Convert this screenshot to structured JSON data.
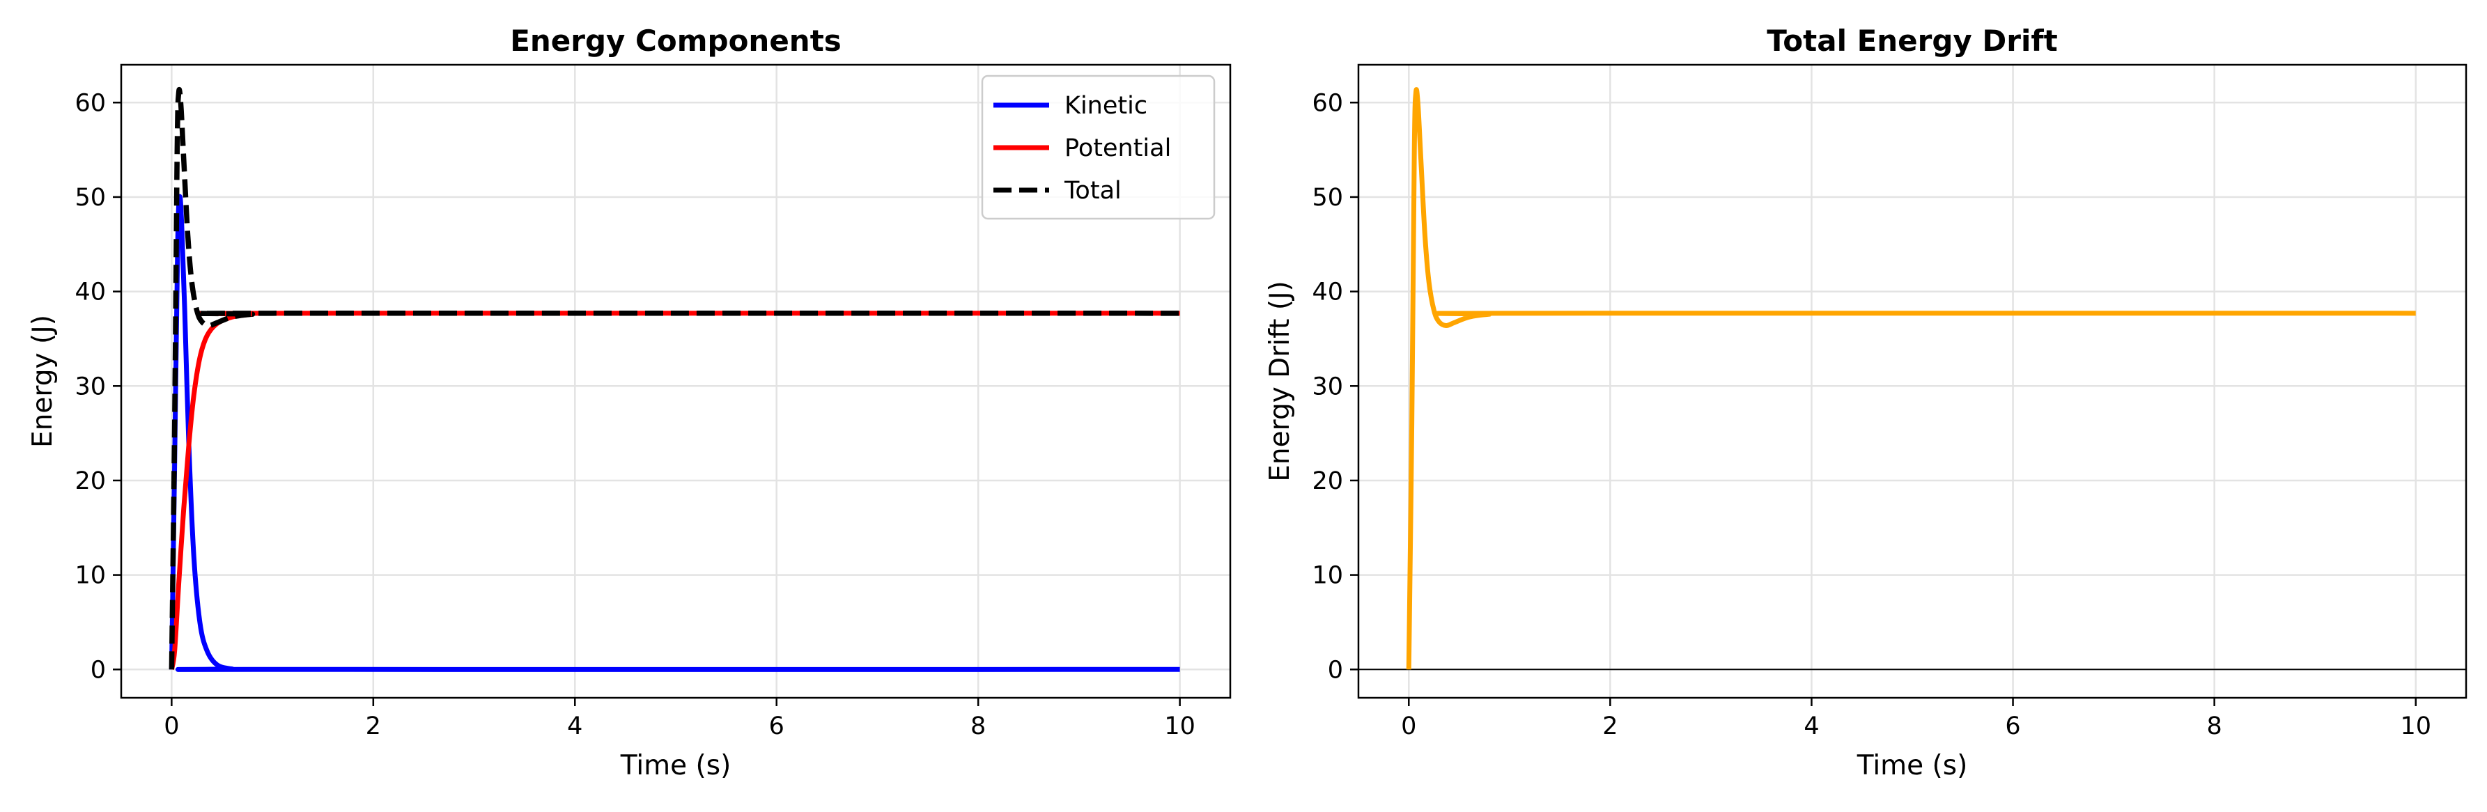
{
  "chart_data": [
    {
      "type": "line",
      "title": "Energy Components",
      "xlabel": "Time (s)",
      "ylabel": "Energy (J)",
      "xlim": [
        -0.5,
        10.5
      ],
      "ylim": [
        -3,
        64
      ],
      "xticks": [
        0,
        2,
        4,
        6,
        8,
        10
      ],
      "yticks": [
        0,
        10,
        20,
        30,
        40,
        50,
        60
      ],
      "grid": true,
      "legend_placement": "top-right",
      "series": [
        {
          "name": "Kinetic",
          "color": "#0000ff",
          "style": "solid",
          "x": [
            0,
            0.03,
            0.06,
            0.08,
            0.1,
            0.13,
            0.17,
            0.22,
            0.28,
            0.35,
            0.45,
            0.6,
            0.8,
            10
          ],
          "y": [
            0,
            22,
            45,
            50,
            47,
            38,
            24,
            12,
            5,
            2,
            0.5,
            0.05,
            0,
            0
          ]
        },
        {
          "name": "Potential",
          "color": "#ff0000",
          "style": "solid",
          "x": [
            0,
            0.03,
            0.07,
            0.12,
            0.17,
            0.22,
            0.28,
            0.35,
            0.45,
            0.6,
            0.8,
            1.0,
            10
          ],
          "y": [
            0,
            2,
            9,
            17,
            23.7,
            29,
            33,
            35.3,
            36.6,
            37.3,
            37.6,
            37.7,
            37.7
          ]
        },
        {
          "name": "Total",
          "color": "#000000",
          "style": "dashed",
          "x": [
            0,
            0.03,
            0.055,
            0.07,
            0.09,
            0.12,
            0.16,
            0.2,
            0.25,
            0.3,
            0.37,
            0.45,
            0.6,
            0.8,
            1.0,
            10
          ],
          "y": [
            0,
            26,
            55,
            61,
            60,
            54,
            46,
            41,
            38,
            36.8,
            36.4,
            36.7,
            37.3,
            37.6,
            37.7,
            37.7
          ]
        }
      ]
    },
    {
      "type": "line",
      "title": "Total Energy Drift",
      "xlabel": "Time (s)",
      "ylabel": "Energy Drift (J)",
      "xlim": [
        -0.5,
        10.5
      ],
      "ylim": [
        -3,
        64
      ],
      "xticks": [
        0,
        2,
        4,
        6,
        8,
        10
      ],
      "yticks": [
        0,
        10,
        20,
        30,
        40,
        50,
        60
      ],
      "grid": true,
      "reference_line_y": 0,
      "series": [
        {
          "color": "#ffa500",
          "style": "solid",
          "x": [
            0,
            0.03,
            0.055,
            0.07,
            0.09,
            0.12,
            0.16,
            0.2,
            0.25,
            0.3,
            0.37,
            0.45,
            0.6,
            0.8,
            1.0,
            10
          ],
          "y": [
            0,
            26,
            55,
            61,
            60,
            54,
            46,
            41,
            38,
            36.8,
            36.4,
            36.7,
            37.3,
            37.6,
            37.7,
            37.7
          ]
        }
      ]
    }
  ]
}
